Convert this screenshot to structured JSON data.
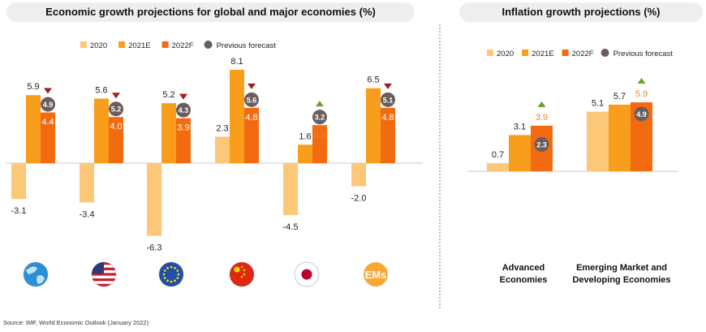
{
  "colors": {
    "s2020": "#fcc777",
    "s2021": "#f99d1c",
    "s2022": "#f26b10",
    "previous": "#6b5d5d",
    "down": "#a31c1c",
    "up": "#6aa12b",
    "value_up": "#e9862d"
  },
  "titles": {
    "left": "Economic growth projections for global and major economies (%)",
    "right": "Inflation growth projections (%)"
  },
  "legend": {
    "s2020": "2020",
    "s2021": "2021E",
    "s2022": "2022F",
    "previous": "Previous forecast"
  },
  "source": "Source: IMF, World Economic Outlook (January 2022)",
  "chart_data": [
    {
      "type": "bar",
      "title": "Economic growth projections for global and major economies (%)",
      "categories": [
        "World",
        "US",
        "Euro Area",
        "China",
        "Japan",
        "EMs"
      ],
      "icons": [
        "globe-icon",
        "us-flag-icon",
        "eu-flag-icon",
        "china-flag-icon",
        "japan-flag-icon",
        "ems-badge-icon"
      ],
      "series": [
        {
          "name": "2020",
          "values": [
            -3.1,
            -3.4,
            -6.3,
            2.3,
            -4.5,
            -2.0
          ]
        },
        {
          "name": "2021E",
          "values": [
            5.9,
            5.6,
            5.2,
            8.1,
            1.6,
            6.5
          ]
        },
        {
          "name": "2022F",
          "values": [
            4.4,
            4.0,
            3.9,
            4.8,
            3.3,
            4.8
          ]
        }
      ],
      "previous_forecast": [
        4.9,
        5.2,
        4.3,
        5.6,
        3.2,
        5.1
      ],
      "revision": [
        "down",
        "down",
        "down",
        "down",
        "up",
        "down"
      ],
      "legend_position": "top",
      "ylim": [
        -7.5,
        10
      ]
    },
    {
      "type": "bar",
      "title": "Inflation growth projections (%)",
      "categories": [
        "Advanced Economies",
        "Emerging Market and Developing Economies"
      ],
      "series": [
        {
          "name": "2020",
          "values": [
            0.7,
            5.1
          ]
        },
        {
          "name": "2021E",
          "values": [
            3.1,
            5.7
          ]
        },
        {
          "name": "2022F",
          "values": [
            3.9,
            5.9
          ]
        }
      ],
      "previous_forecast": [
        2.3,
        4.9
      ],
      "revision": [
        "up",
        "up"
      ],
      "legend_position": "top",
      "ylim": [
        0,
        9
      ]
    }
  ]
}
